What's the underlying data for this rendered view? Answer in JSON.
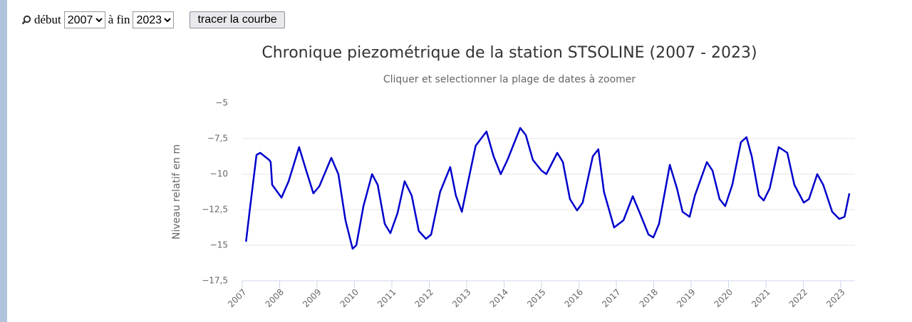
{
  "controls": {
    "start_label": "début",
    "start_value": "2007",
    "end_label": "à fin",
    "end_value": "2023",
    "button": "tracer la courbe"
  },
  "chart_data": {
    "type": "line",
    "title": "Chronique piezométrique de la station STSOLINE (2007 - 2023)",
    "subtitle": "Cliquer et selectionner la plage de dates à zoomer",
    "y_label": "Niveau relatif en m",
    "x": [
      2007.1,
      2007.19,
      2007.38,
      2007.48,
      2007.72,
      2007.76,
      2007.8,
      2008.05,
      2008.24,
      2008.52,
      2008.71,
      2008.9,
      2009.06,
      2009.38,
      2009.57,
      2009.76,
      2009.95,
      2010.05,
      2010.24,
      2010.47,
      2010.62,
      2010.81,
      2010.96,
      2011.15,
      2011.34,
      2011.53,
      2011.72,
      2011.91,
      2012.05,
      2012.29,
      2012.56,
      2012.71,
      2012.87,
      2013.0,
      2013.24,
      2013.53,
      2013.72,
      2013.91,
      2014.09,
      2014.43,
      2014.58,
      2014.77,
      2015.0,
      2015.13,
      2015.42,
      2015.57,
      2015.76,
      2015.95,
      2016.1,
      2016.37,
      2016.52,
      2016.67,
      2016.94,
      2017.19,
      2017.44,
      2017.63,
      2017.86,
      2017.99,
      2018.14,
      2018.43,
      2018.62,
      2018.77,
      2018.96,
      2019.1,
      2019.42,
      2019.57,
      2019.76,
      2019.91,
      2020.1,
      2020.33,
      2020.48,
      2020.62,
      2020.81,
      2020.94,
      2021.1,
      2021.34,
      2021.57,
      2021.76,
      2022.01,
      2022.15,
      2022.37,
      2022.53,
      2022.77,
      2022.96,
      2023.1,
      2023.23
    ],
    "series": [
      {
        "name": "STSOLINE",
        "color": "#0000cc",
        "values": [
          -14.75,
          -12.75,
          -8.65,
          -8.5,
          -9.0,
          -9.15,
          -10.75,
          -11.65,
          -10.5,
          -8.1,
          -9.75,
          -11.35,
          -10.85,
          -8.85,
          -10,
          -13.25,
          -15.25,
          -15,
          -12.25,
          -10,
          -10.75,
          -13.5,
          -14.15,
          -12.75,
          -10.5,
          -11.5,
          -14,
          -14.55,
          -14.25,
          -11.25,
          -9.5,
          -11.5,
          -12.65,
          -11,
          -8,
          -7,
          -8.75,
          -10,
          -9,
          -6.75,
          -7.25,
          -9,
          -9.75,
          -10,
          -8.5,
          -9.15,
          -11.75,
          -12.55,
          -12,
          -8.75,
          -8.25,
          -11.25,
          -13.75,
          -13.25,
          -11.55,
          -12.75,
          -14.25,
          -14.45,
          -13.5,
          -9.35,
          -11,
          -12.65,
          -13,
          -11.5,
          -9.15,
          -9.75,
          -11.75,
          -12.25,
          -10.75,
          -7.75,
          -7.4,
          -8.75,
          -11.5,
          -11.85,
          -11,
          -8.1,
          -8.5,
          -10.75,
          -12,
          -11.75,
          -10,
          -10.75,
          -12.65,
          -13.15,
          -13,
          -11.35
        ]
      }
    ],
    "xlim": [
      2007,
      2023.38
    ],
    "xticks": [
      2007,
      2008,
      2009,
      2010,
      2011,
      2012,
      2013,
      2014,
      2015,
      2016,
      2017,
      2018,
      2019,
      2020,
      2021,
      2022,
      2023
    ],
    "ylim": [
      -17.5,
      -5
    ],
    "yticks": [
      {
        "value": -5,
        "label": "−5"
      },
      {
        "value": -7.5,
        "label": "−7,5"
      },
      {
        "value": -10,
        "label": "−10"
      },
      {
        "value": -12.5,
        "label": "−12,5"
      },
      {
        "value": -15,
        "label": "−15"
      },
      {
        "value": -17.5,
        "label": "−17,5"
      }
    ],
    "grid": true
  }
}
